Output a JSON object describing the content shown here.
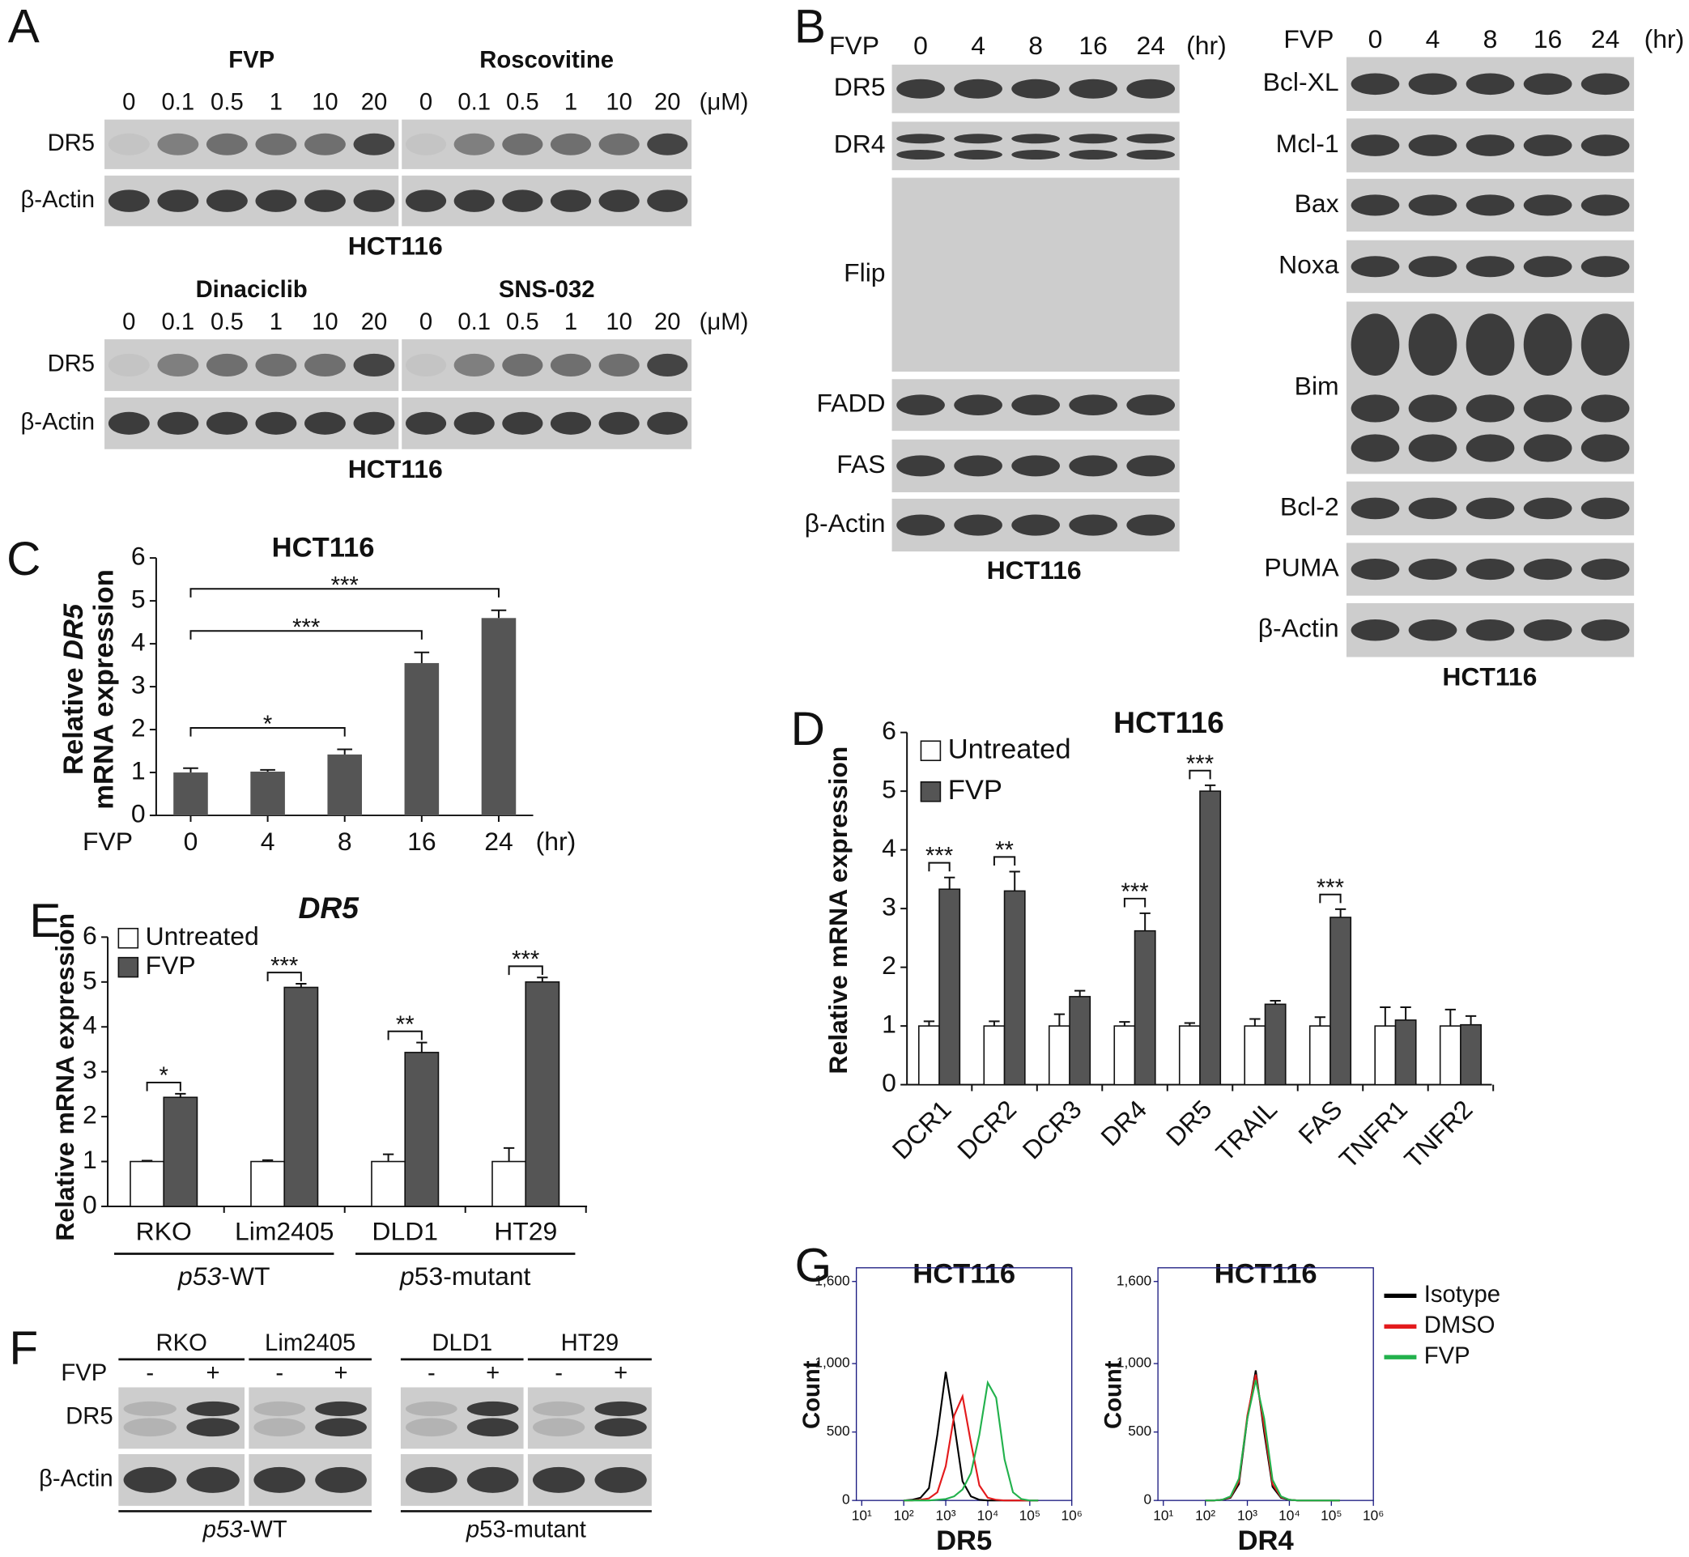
{
  "panel_a": {
    "letter": "A",
    "rows": [
      {
        "drugs": [
          "FVP",
          "Roscovitine"
        ],
        "concentrations": [
          0,
          0.1,
          0.5,
          1,
          10,
          20
        ],
        "unit": "(μM)",
        "proteins": [
          "DR5",
          "β-Actin"
        ],
        "cell_line": "HCT116"
      },
      {
        "drugs": [
          "Dinaciclib",
          "SNS-032"
        ],
        "concentrations": [
          0,
          0.1,
          0.5,
          1,
          10,
          20
        ],
        "unit": "(μM)",
        "proteins": [
          "DR5",
          "β-Actin"
        ],
        "cell_line": "HCT116"
      }
    ]
  },
  "panel_b": {
    "letter": "B",
    "blots": [
      {
        "treatment": "FVP",
        "times": [
          0,
          4,
          8,
          16,
          24
        ],
        "unit": "(hr)",
        "proteins": [
          "DR5",
          "DR4",
          "Flip",
          "FADD",
          "FAS",
          "β-Actin"
        ],
        "cell_line": "HCT116"
      },
      {
        "treatment": "FVP",
        "times": [
          0,
          4,
          8,
          16,
          24
        ],
        "unit": "(hr)",
        "proteins": [
          "Bcl-XL",
          "Mcl-1",
          "Bax",
          "Noxa",
          "Bim",
          "Bcl-2",
          "PUMA",
          "β-Actin"
        ],
        "cell_line": "HCT116"
      }
    ]
  },
  "panel_f": {
    "letter": "F",
    "cell_lines": [
      "RKO",
      "Lim2405",
      "DLD1",
      "HT29"
    ],
    "treatment": "FVP",
    "conditions": [
      "-",
      "+"
    ],
    "proteins": [
      "DR5",
      "β-Actin"
    ],
    "groups": [
      {
        "gene": "p53",
        "suffix": "-WT"
      },
      {
        "gene": "p",
        "suffix": "53-mutant"
      }
    ]
  },
  "chart_data": [
    {
      "type": "bar",
      "letter": "C",
      "title": "HCT116",
      "y_label": [
        "Relative",
        "DR5",
        "mRNA expression"
      ],
      "x_label": "FVP",
      "x_unit": "(hr)",
      "categories": [
        "0",
        "4",
        "8",
        "16",
        "24"
      ],
      "values": [
        1.0,
        1.02,
        1.42,
        3.55,
        4.6
      ],
      "errors": [
        0.1,
        0.04,
        0.12,
        0.25,
        0.18
      ],
      "color": "#555555",
      "ylim": [
        0,
        6
      ],
      "yticks": [
        0,
        1,
        2,
        3,
        4,
        5,
        6
      ],
      "significance": [
        {
          "between": [
            "0",
            "8"
          ],
          "label": "*"
        },
        {
          "between": [
            "0",
            "16"
          ],
          "label": "***"
        },
        {
          "between": [
            "0",
            "24"
          ],
          "label": "***"
        }
      ]
    },
    {
      "type": "grouped_bar",
      "letter": "D",
      "title": "HCT116",
      "y_label": "Relative mRNA expression",
      "categories": [
        "DCR1",
        "DCR2",
        "DCR3",
        "DR4",
        "DR5",
        "TRAIL",
        "FAS",
        "TNFR1",
        "TNFR2"
      ],
      "series": [
        {
          "name": "Untreated",
          "color": "#ffffff",
          "values": [
            1,
            1,
            1,
            1,
            1,
            1,
            1,
            1,
            1
          ],
          "errors": [
            0.08,
            0.08,
            0.2,
            0.07,
            0.05,
            0.12,
            0.15,
            0.32,
            0.28
          ]
        },
        {
          "name": "FVP",
          "color": "#555555",
          "values": [
            3.33,
            3.3,
            1.5,
            2.62,
            5.0,
            1.37,
            2.85,
            1.1,
            1.02
          ],
          "errors": [
            0.2,
            0.33,
            0.1,
            0.3,
            0.1,
            0.06,
            0.14,
            0.22,
            0.15
          ]
        }
      ],
      "ylim": [
        0,
        6
      ],
      "yticks": [
        0,
        1,
        2,
        3,
        4,
        5,
        6
      ],
      "legend": "upper left",
      "significance": [
        {
          "category": "DCR1",
          "label": "***"
        },
        {
          "category": "DCR2",
          "label": "**"
        },
        {
          "category": "DR4",
          "label": "***"
        },
        {
          "category": "DR5",
          "label": "***"
        },
        {
          "category": "FAS",
          "label": "***"
        }
      ]
    },
    {
      "type": "grouped_bar",
      "letter": "E",
      "title": "DR5",
      "y_label": "Relative mRNA expression",
      "categories": [
        "RKO",
        "Lim2405",
        "DLD1",
        "HT29"
      ],
      "series": [
        {
          "name": "Untreated",
          "color": "#ffffff",
          "values": [
            1,
            1,
            1,
            1
          ],
          "errors": [
            0.02,
            0.03,
            0.16,
            0.3
          ]
        },
        {
          "name": "FVP",
          "color": "#555555",
          "values": [
            2.43,
            4.88,
            3.43,
            5.0
          ],
          "errors": [
            0.08,
            0.08,
            0.22,
            0.1
          ]
        }
      ],
      "ylim": [
        0,
        6
      ],
      "yticks": [
        0,
        1,
        2,
        3,
        4,
        5,
        6
      ],
      "legend": "upper left",
      "groups": [
        {
          "gene": "p53",
          "suffix": "-WT",
          "categories": [
            "RKO",
            "Lim2405"
          ]
        },
        {
          "gene": "p",
          "suffix": "53-mutant",
          "categories": [
            "DLD1",
            "HT29"
          ]
        }
      ],
      "significance": [
        {
          "category": "RKO",
          "label": "*"
        },
        {
          "category": "Lim2405",
          "label": "***"
        },
        {
          "category": "DLD1",
          "label": "**"
        },
        {
          "category": "HT29",
          "label": "***"
        }
      ]
    },
    {
      "type": "line",
      "letter": "G",
      "title": "HCT116",
      "x_label": "DR5",
      "y_label": "Count",
      "xscale": "log",
      "xlim": [
        10,
        1000000
      ],
      "xticks": [
        {
          "value": 10,
          "label": "10¹"
        },
        {
          "value": 100,
          "label": "10²"
        },
        {
          "value": 1000,
          "label": "10³"
        },
        {
          "value": 10000,
          "label": "10⁴"
        },
        {
          "value": 100000,
          "label": "10⁵"
        },
        {
          "value": 1000000,
          "label": "10⁶"
        }
      ],
      "ylim": [
        0,
        1700
      ],
      "yticks": [
        0,
        500,
        {
          "value": 1000,
          "label": "1,000"
        },
        {
          "value": 1600,
          "label": "1,600"
        }
      ],
      "x": [
        100,
        158,
        251,
        398,
        631,
        1000,
        1585,
        2512,
        3981,
        6310,
        10000,
        15849,
        25119,
        39811,
        63096,
        100000,
        158489
      ],
      "series": [
        {
          "name": "Isotype",
          "color": "#000000",
          "values": [
            0,
            5,
            20,
            90,
            480,
            940,
            560,
            140,
            30,
            5,
            0,
            0,
            0,
            0,
            0,
            0,
            0
          ]
        },
        {
          "name": "DMSO",
          "color": "#e31a1c",
          "values": [
            0,
            0,
            5,
            15,
            60,
            250,
            620,
            760,
            420,
            110,
            20,
            5,
            0,
            0,
            0,
            0,
            0
          ]
        },
        {
          "name": "FVP",
          "color": "#22b14c",
          "values": [
            0,
            0,
            0,
            0,
            5,
            10,
            30,
            80,
            200,
            480,
            860,
            750,
            300,
            60,
            10,
            0,
            0
          ]
        }
      ]
    },
    {
      "type": "line",
      "title": "HCT116",
      "x_label": "DR4",
      "y_label": "Count",
      "xscale": "log",
      "xlim": [
        10,
        1000000
      ],
      "xticks": [
        {
          "value": 10,
          "label": "10¹"
        },
        {
          "value": 100,
          "label": "10²"
        },
        {
          "value": 1000,
          "label": "10³"
        },
        {
          "value": 10000,
          "label": "10⁴"
        },
        {
          "value": 100000,
          "label": "10⁵"
        },
        {
          "value": 1000000,
          "label": "10⁶"
        }
      ],
      "ylim": [
        0,
        1700
      ],
      "yticks": [
        0,
        500,
        {
          "value": 1000,
          "label": "1,000"
        },
        {
          "value": 1600,
          "label": "1,600"
        }
      ],
      "x": [
        100,
        158,
        251,
        398,
        631,
        1000,
        1585,
        2512,
        3981,
        6310,
        10000,
        15849,
        25119,
        39811,
        63096,
        100000,
        158489
      ],
      "legend": "right",
      "series": [
        {
          "name": "Isotype",
          "color": "#000000",
          "values": [
            0,
            0,
            5,
            20,
            120,
            600,
            950,
            500,
            100,
            20,
            5,
            0,
            0,
            0,
            0,
            0,
            0
          ]
        },
        {
          "name": "DMSO",
          "color": "#e31a1c",
          "values": [
            0,
            0,
            5,
            25,
            140,
            620,
            920,
            540,
            120,
            25,
            5,
            0,
            0,
            0,
            0,
            0,
            0
          ]
        },
        {
          "name": "FVP",
          "color": "#22b14c",
          "values": [
            0,
            0,
            5,
            30,
            160,
            600,
            880,
            600,
            150,
            30,
            5,
            0,
            0,
            0,
            0,
            0,
            0
          ]
        }
      ]
    }
  ]
}
